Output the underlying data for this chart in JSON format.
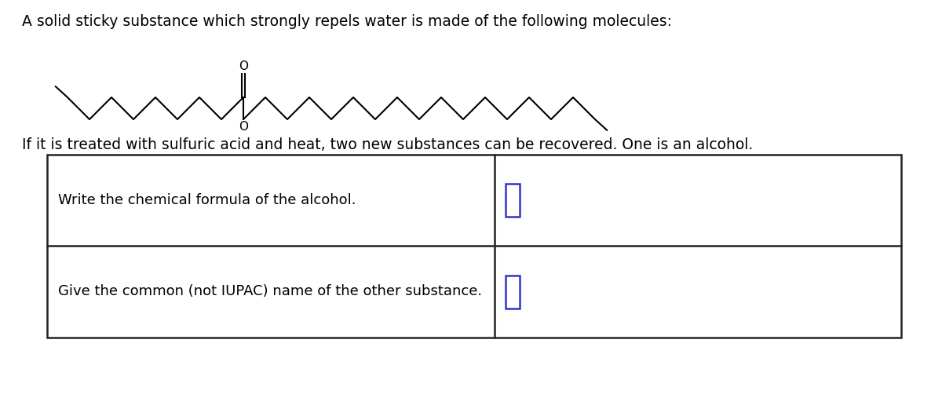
{
  "header_text": "A solid sticky substance which strongly repels water is made of the following molecules:",
  "paragraph_text": "If it is treated with sulfuric acid and heat, two new substances can be recovered. One is an alcohol.",
  "table_rows": [
    "Write the chemical formula of the alcohol.",
    "Give the common (not IUPAC) name of the other substance."
  ],
  "background_color": "#ffffff",
  "text_color": "#000000",
  "table_border_color": "#222222",
  "answer_box_color": "#3333cc",
  "font_size_header": 13.5,
  "font_size_para": 13.5,
  "font_size_table": 13.0,
  "molecule_color": "#000000",
  "fig_width": 12.0,
  "fig_height": 5.21
}
